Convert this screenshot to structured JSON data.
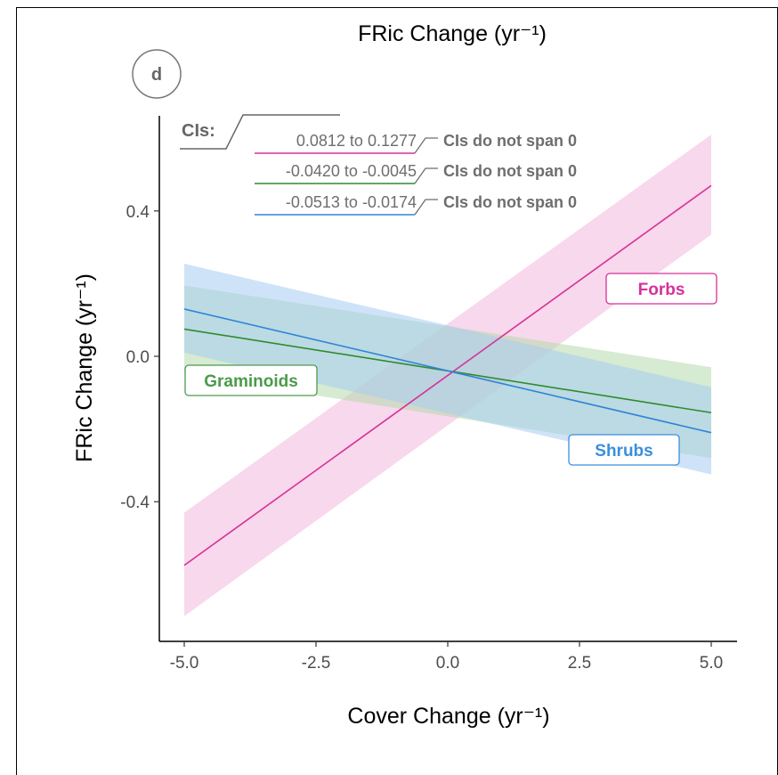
{
  "panel_label": "d",
  "ci_header": "CIs:",
  "chart_data": {
    "type": "line",
    "title": "FRic Change (yr⁻¹)",
    "xlabel": "Cover Change (yr⁻¹)",
    "ylabel": "FRic Change (yr⁻¹)",
    "xlim": [
      -5.5,
      5.5
    ],
    "ylim": [
      -0.78,
      0.67
    ],
    "x_ticks": [
      -5.0,
      -2.5,
      0.0,
      2.5,
      5.0
    ],
    "x_tick_labels": [
      "-5.0",
      "-2.5",
      "0.0",
      "2.5",
      "5.0"
    ],
    "y_ticks": [
      -0.4,
      0.0,
      0.4
    ],
    "y_tick_labels": [
      "-0.4",
      "0.0",
      "0.4"
    ],
    "grid": false,
    "series": [
      {
        "name": "Forbs",
        "color": "#d6319a",
        "fill": "#f2b8dc",
        "x": [
          -5,
          5
        ],
        "y": [
          -0.575,
          0.47
        ],
        "lower": [
          -0.715,
          0.335
        ],
        "upper": [
          -0.43,
          0.61
        ],
        "ci_text": "0.0812 to  0.1277",
        "ci_note": "CIs do not span 0"
      },
      {
        "name": "Graminoids",
        "color": "#2e8b2e",
        "fill": "#b5dbab",
        "x": [
          -5,
          5
        ],
        "y": [
          0.075,
          -0.155
        ],
        "lower": [
          -0.05,
          -0.28
        ],
        "upper": [
          0.195,
          -0.03
        ],
        "ci_text": "-0.0420 to -0.0045",
        "ci_note": "CIs do not span 0"
      },
      {
        "name": "Shrubs",
        "color": "#2f86d6",
        "fill": "#a8ccf2",
        "x": [
          -5,
          5
        ],
        "y": [
          0.13,
          -0.21
        ],
        "lower": [
          0.01,
          -0.325
        ],
        "upper": [
          0.255,
          -0.085
        ],
        "ci_text": "-0.0513 to -0.0174",
        "ci_note": "CIs do not span 0"
      }
    ],
    "labels": [
      {
        "text": "Forbs",
        "color": "#d6319a"
      },
      {
        "text": "Graminoids",
        "color": "#4b9b4b"
      },
      {
        "text": "Shrubs",
        "color": "#3a8fdc"
      }
    ]
  }
}
